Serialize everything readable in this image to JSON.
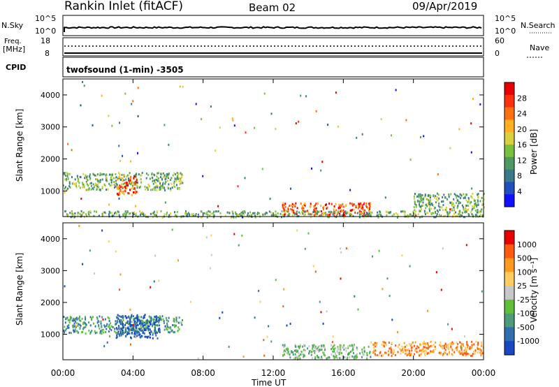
{
  "header": {
    "station": "Rankin Inlet (fitACF)",
    "beam": "Beam 02",
    "date": "09/Apr/2019"
  },
  "top_panels": {
    "nsky_label": "N.Sky",
    "nsky_ticks": [
      "10^5",
      "10^0"
    ],
    "nsearch_label": "N.Search",
    "nsearch_ticks": [
      "10^5",
      "10^0"
    ],
    "freq_label": "Freq.",
    "freq_unit": "[MHz]",
    "freq_ticks": [
      "18",
      "8"
    ],
    "nave_label": "Nave",
    "nave_ticks": [
      "60",
      "0"
    ],
    "cpid_label": "CPID",
    "cpid_text": "twofsound (1-min) -3505"
  },
  "time_axis": {
    "label": "Time UT",
    "ticks": [
      "00:00",
      "04:00",
      "08:00",
      "12:00",
      "16:00",
      "20:00",
      "00:00"
    ]
  },
  "chart_data": [
    {
      "type": "heatmap",
      "title": "",
      "ylabel": "Slant Range [km]",
      "xlabel": "",
      "yticks": [
        "1000",
        "2000",
        "3000",
        "4000"
      ],
      "ylim": [
        200,
        4500
      ],
      "xlim_hours": [
        0,
        24
      ],
      "colorbar": {
        "label": "Power [dB]",
        "ticks": [
          "4",
          "8",
          "12",
          "16",
          "20",
          "24",
          "28"
        ],
        "colors": [
          "#1010ff",
          "#2050c0",
          "#3a7a8a",
          "#4f9a60",
          "#7ac040",
          "#d8d040",
          "#ffb020",
          "#ff7010",
          "#ff3010",
          "#e80000"
        ]
      },
      "regions": [
        {
          "t0": 0.0,
          "t1": 6.8,
          "r0": 1050,
          "r1": 1600,
          "level": "medium"
        },
        {
          "t0": 3.0,
          "t1": 4.2,
          "r0": 900,
          "r1": 1500,
          "level": "high"
        },
        {
          "t0": 12.5,
          "t1": 17.5,
          "r0": 250,
          "r1": 650,
          "level": "high"
        },
        {
          "t0": 0.0,
          "t1": 24.0,
          "r0": 200,
          "r1": 400,
          "level": "medium"
        },
        {
          "t0": 20.0,
          "t1": 24.0,
          "r0": 400,
          "r1": 950,
          "level": "medium"
        }
      ]
    },
    {
      "type": "heatmap",
      "title": "",
      "ylabel": "Slant Range [km]",
      "xlabel": "Time UT",
      "yticks": [
        "1000",
        "2000",
        "3000",
        "4000"
      ],
      "ylim": [
        200,
        4500
      ],
      "xlim_hours": [
        0,
        24
      ],
      "colorbar": {
        "label": "Velocity [m s⁻¹]",
        "ticks": [
          "1000",
          "500",
          "100",
          "25",
          "-25",
          "-100",
          "-500",
          "-1000"
        ],
        "colors": [
          "#1848c0",
          "#2f6fb0",
          "#4e9a7a",
          "#5fbf3a",
          "#c8c8c8",
          "#ffcc60",
          "#ff9a20",
          "#ff5a10",
          "#e80000"
        ]
      },
      "regions": [
        {
          "t0": 0.0,
          "t1": 6.8,
          "r0": 1050,
          "r1": 1600,
          "level": "green"
        },
        {
          "t0": 3.0,
          "t1": 5.5,
          "r0": 900,
          "r1": 1650,
          "level": "blue"
        },
        {
          "t0": 12.5,
          "t1": 17.5,
          "r0": 250,
          "r1": 700,
          "level": "lightgreen"
        },
        {
          "t0": 17.5,
          "t1": 24.0,
          "r0": 350,
          "r1": 800,
          "level": "orange"
        }
      ]
    }
  ]
}
